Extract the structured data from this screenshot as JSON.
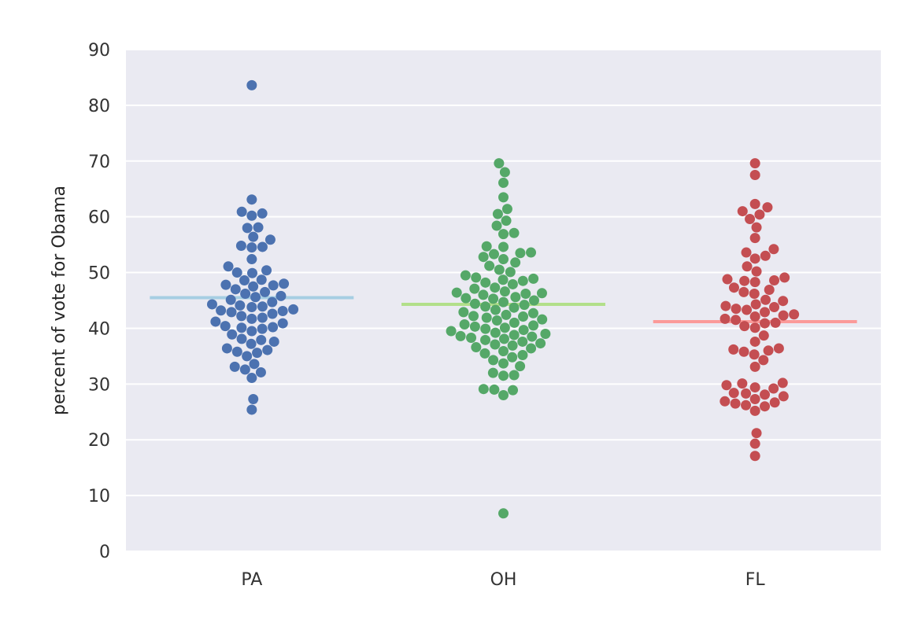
{
  "chart_data": {
    "type": "scatter",
    "subtype": "swarm",
    "title": "",
    "xlabel": "",
    "ylabel": "percent of vote for Obama",
    "ylim": [
      0,
      90
    ],
    "yticks": [
      "0",
      "10",
      "20",
      "30",
      "40",
      "50",
      "60",
      "70",
      "80",
      "90"
    ],
    "categories": [
      "PA",
      "OH",
      "FL"
    ],
    "grid": true,
    "legend": "none",
    "background": "#eaeaf2",
    "series": [
      {
        "category": "PA",
        "color": "#4c72b0",
        "mean": 45.5,
        "mean_color": "#a6cee3",
        "values": [
          83.6,
          63.1,
          60.9,
          60.6,
          60.2,
          58.1,
          58.0,
          56.4,
          55.9,
          54.8,
          54.6,
          54.5,
          52.4,
          51.1,
          50.4,
          50.0,
          49.9,
          48.7,
          48.6,
          48.0,
          47.8,
          47.7,
          47.5,
          47.0,
          46.5,
          46.2,
          45.8,
          45.6,
          45.1,
          44.7,
          44.3,
          44.1,
          43.9,
          43.8,
          43.4,
          43.2,
          43.1,
          42.9,
          42.6,
          42.2,
          41.9,
          41.7,
          41.2,
          40.9,
          40.4,
          40.2,
          40.1,
          39.9,
          39.5,
          38.9,
          38.1,
          37.9,
          37.6,
          37.2,
          36.4,
          36.1,
          35.8,
          35.6,
          35.0,
          33.6,
          33.1,
          32.6,
          32.1,
          31.1,
          27.3,
          25.4
        ]
      },
      {
        "category": "OH",
        "color": "#55a868",
        "mean": 44.3,
        "mean_color": "#b2df8a",
        "values": [
          69.6,
          68.0,
          66.1,
          63.5,
          61.4,
          60.5,
          59.3,
          58.4,
          57.1,
          56.9,
          54.7,
          54.6,
          53.6,
          53.5,
          53.3,
          52.8,
          52.4,
          51.8,
          51.2,
          50.5,
          50.1,
          49.5,
          49.1,
          48.9,
          48.7,
          48.5,
          48.2,
          47.9,
          47.3,
          47.1,
          46.6,
          46.4,
          46.3,
          46.2,
          46.0,
          45.6,
          45.4,
          45.3,
          45.0,
          44.7,
          44.4,
          44.2,
          43.9,
          43.7,
          43.3,
          42.9,
          42.7,
          42.4,
          42.2,
          42.1,
          41.9,
          41.6,
          41.4,
          41.0,
          40.7,
          40.5,
          40.3,
          40.1,
          39.9,
          39.7,
          39.5,
          39.2,
          39.0,
          38.8,
          38.6,
          38.5,
          38.3,
          38.1,
          37.9,
          37.6,
          37.3,
          37.1,
          36.9,
          36.6,
          36.4,
          35.9,
          35.5,
          35.2,
          34.8,
          34.3,
          33.7,
          33.2,
          32.0,
          31.6,
          31.5,
          29.1,
          29.0,
          28.9,
          28.0,
          6.8
        ]
      },
      {
        "category": "FL",
        "color": "#c44e52",
        "mean": 41.2,
        "mean_color": "#fb9a99",
        "values": [
          69.6,
          67.5,
          62.3,
          61.7,
          61.0,
          60.4,
          59.6,
          58.1,
          56.2,
          54.2,
          53.6,
          53.0,
          52.5,
          51.1,
          50.2,
          49.1,
          48.8,
          48.6,
          48.5,
          48.3,
          47.3,
          46.9,
          46.5,
          46.2,
          45.1,
          44.9,
          44.3,
          44.0,
          43.8,
          43.5,
          43.3,
          42.9,
          42.5,
          42.3,
          42.1,
          41.7,
          41.5,
          41.0,
          40.9,
          40.4,
          40.1,
          38.7,
          37.6,
          36.4,
          36.2,
          36.0,
          35.8,
          35.3,
          34.3,
          33.1,
          30.2,
          30.1,
          29.8,
          29.4,
          29.2,
          28.4,
          28.3,
          28.1,
          27.8,
          27.3,
          26.9,
          26.7,
          26.5,
          26.2,
          26.0,
          25.2,
          21.2,
          19.3,
          17.1
        ]
      }
    ]
  }
}
